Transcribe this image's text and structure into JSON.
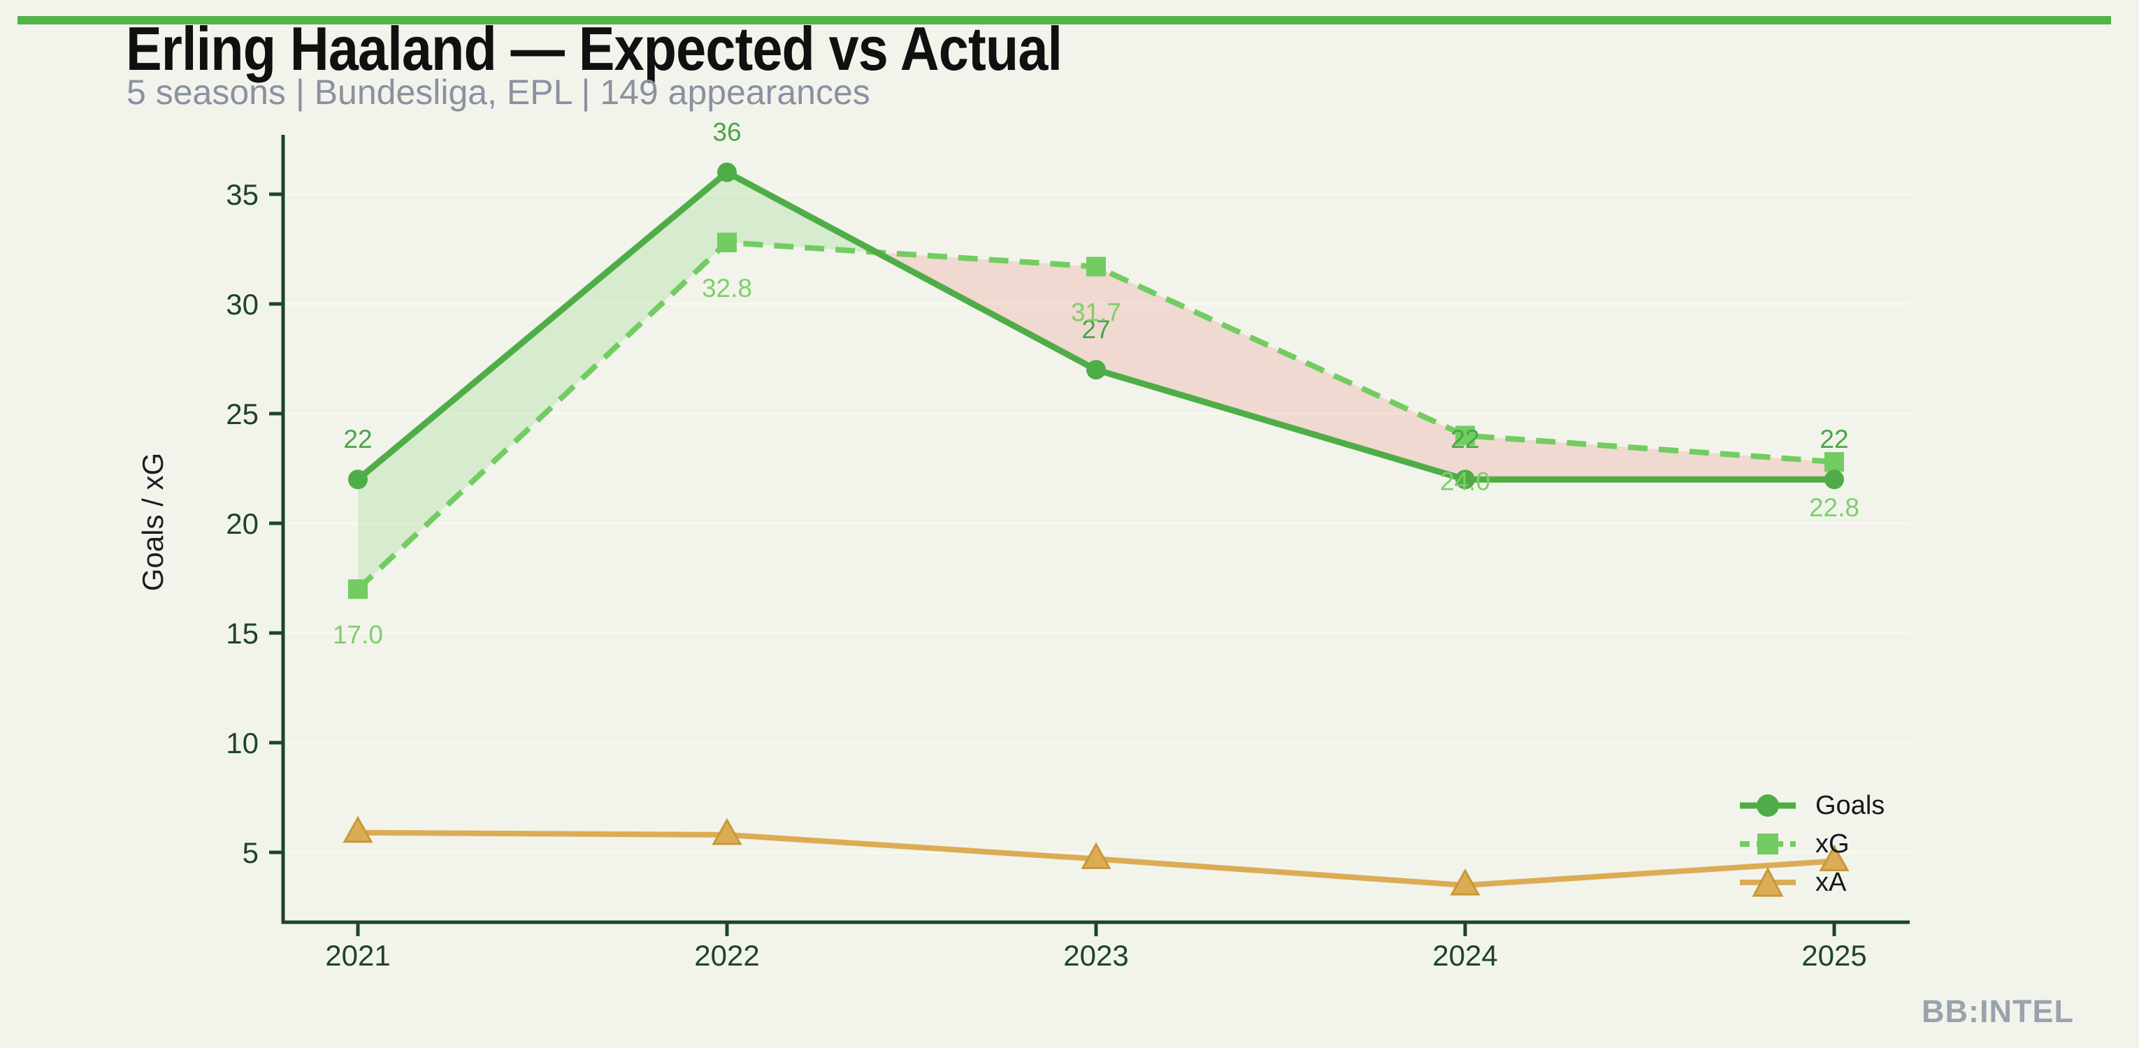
{
  "page": {
    "background": "#F2F4EC",
    "accent_bar_color": "#53B348"
  },
  "header": {
    "title": "Erling Haaland — Expected vs Actual",
    "subtitle": "5 seasons | Bundesliga, EPL | 149 appearances"
  },
  "watermark": "BB:INTEL",
  "chart_data": {
    "type": "line",
    "title": "Erling Haaland — Expected vs Actual",
    "categories": [
      "2021",
      "2022",
      "2023",
      "2024",
      "2025"
    ],
    "xlabel": "",
    "ylabel": "Goals / xG",
    "yticks": [
      5,
      10,
      15,
      20,
      25,
      30,
      35
    ],
    "ylim": [
      1.8,
      37.7
    ],
    "grid": true,
    "legend_position": "lower right",
    "axis_color": "#1E4429",
    "grid_color": "#F8F9F1",
    "tick_label_color": "#1E4429",
    "axis_title_color": "#1A1D24",
    "series": [
      {
        "name": "Goals",
        "values": [
          22,
          36,
          27,
          22,
          22
        ],
        "point_labels": [
          "22",
          "36",
          "27",
          "22",
          "22"
        ],
        "color": "#4FAD48",
        "label_color": "#4BA447",
        "marker": "circle",
        "line_style": "solid"
      },
      {
        "name": "xG",
        "values": [
          17.0,
          32.8,
          31.7,
          24.0,
          22.8
        ],
        "point_labels": [
          "17.0",
          "32.8",
          "31.7",
          "24.0",
          "22.8"
        ],
        "color": "#73CC61",
        "label_color": "#7FCE6B",
        "marker": "square",
        "line_style": "dashed"
      },
      {
        "name": "xA",
        "values": [
          5.9,
          5.8,
          4.7,
          3.5,
          4.6
        ],
        "point_labels": [],
        "color": "#DCAC55",
        "marker_edge_color": "#C79838",
        "label_color": "#DCAC55",
        "marker": "triangle",
        "line_style": "solid"
      }
    ],
    "fill_between": {
      "series": [
        "Goals",
        "xG"
      ],
      "positive_color": "rgba(111,201,94,0.20)",
      "negative_color": "rgba(231,121,108,0.22)"
    }
  }
}
